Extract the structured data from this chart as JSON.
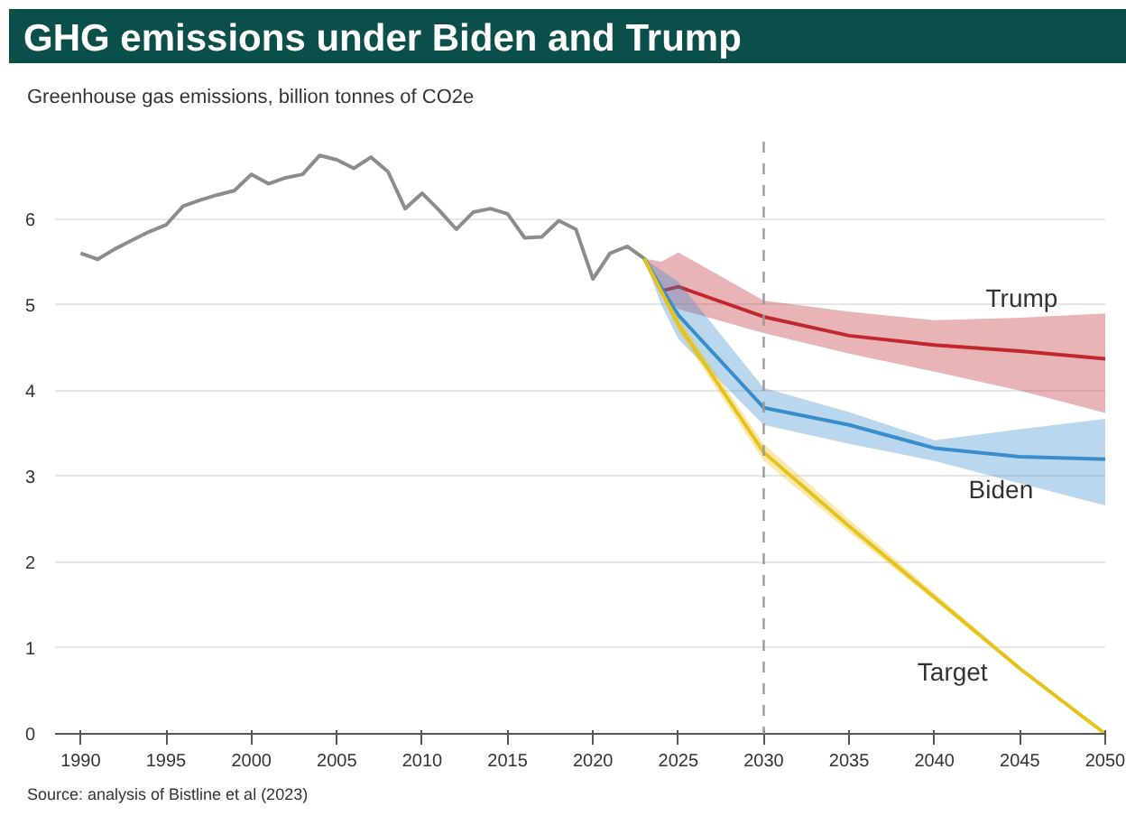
{
  "chart_data": {
    "type": "line",
    "title": "GHG emissions under Biden and Trump",
    "ylabel": "Greenhouse gas emissions, billion tonnes of CO2e",
    "annotations": [
      "Source: analysis of Bistline et al (2023)"
    ],
    "xlim": [
      1988.5,
      2050
    ],
    "ylim": [
      0,
      6.9
    ],
    "xticks": [
      1990,
      1995,
      2000,
      2005,
      2010,
      2015,
      2020,
      2025,
      2030,
      2035,
      2040,
      2045,
      2050
    ],
    "yticks": [
      0,
      1,
      2,
      3,
      4,
      5,
      6
    ],
    "grid": "y",
    "ref_lines": [
      {
        "axis": "x",
        "value": 2030,
        "color": "#999999",
        "line_style": "dashed"
      }
    ],
    "series": [
      {
        "color": "#8c8c8c",
        "x": [
          1990,
          1991,
          1992,
          1993,
          1994,
          1995,
          1996,
          1997,
          1998,
          1999,
          2000,
          2001,
          2002,
          2003,
          2004,
          2005,
          2006,
          2007,
          2008,
          2009,
          2010,
          2011,
          2012,
          2013,
          2014,
          2015,
          2016,
          2017,
          2018,
          2019,
          2020,
          2021,
          2022,
          2023
        ],
        "values": [
          5.6,
          5.53,
          5.65,
          5.75,
          5.85,
          5.93,
          6.15,
          6.22,
          6.28,
          6.33,
          6.52,
          6.41,
          6.48,
          6.52,
          6.74,
          6.69,
          6.59,
          6.72,
          6.55,
          6.12,
          6.3,
          6.1,
          5.88,
          6.08,
          6.12,
          6.06,
          5.78,
          5.79,
          5.98,
          5.88,
          5.3,
          5.6,
          5.68,
          5.54
        ]
      },
      {
        "name": "Trump",
        "color": "#c0282d",
        "x": [
          2023,
          2024,
          2025,
          2030,
          2035,
          2040,
          2045,
          2050
        ],
        "values": [
          5.54,
          5.16,
          5.21,
          4.86,
          4.64,
          4.53,
          4.46,
          4.37
        ],
        "lower": [
          5.54,
          5.13,
          4.95,
          4.67,
          4.43,
          4.22,
          4.0,
          3.74
        ],
        "upper": [
          5.54,
          5.5,
          5.61,
          5.05,
          4.92,
          4.82,
          4.85,
          4.9
        ]
      },
      {
        "name": "Biden",
        "color": "#3a8dcc",
        "x": [
          2023,
          2024,
          2025,
          2030,
          2035,
          2040,
          2045,
          2050
        ],
        "values": [
          5.54,
          5.2,
          4.88,
          3.8,
          3.6,
          3.33,
          3.23,
          3.2
        ],
        "lower": [
          5.54,
          5.0,
          4.6,
          3.6,
          3.38,
          3.18,
          2.92,
          2.66
        ],
        "upper": [
          5.54,
          5.4,
          5.27,
          4.03,
          3.75,
          3.42,
          3.55,
          3.67
        ]
      },
      {
        "name": "Target",
        "color": "#e8c21c",
        "x": [
          2023,
          2025,
          2030,
          2035,
          2040,
          2045,
          2050
        ],
        "values": [
          5.54,
          4.77,
          3.28,
          2.42,
          1.59,
          0.76,
          0
        ],
        "lower": [
          5.54,
          4.7,
          3.18,
          2.35,
          1.55,
          0.74,
          0
        ],
        "upper": [
          5.54,
          4.85,
          3.38,
          2.5,
          1.64,
          0.79,
          0
        ]
      }
    ]
  }
}
